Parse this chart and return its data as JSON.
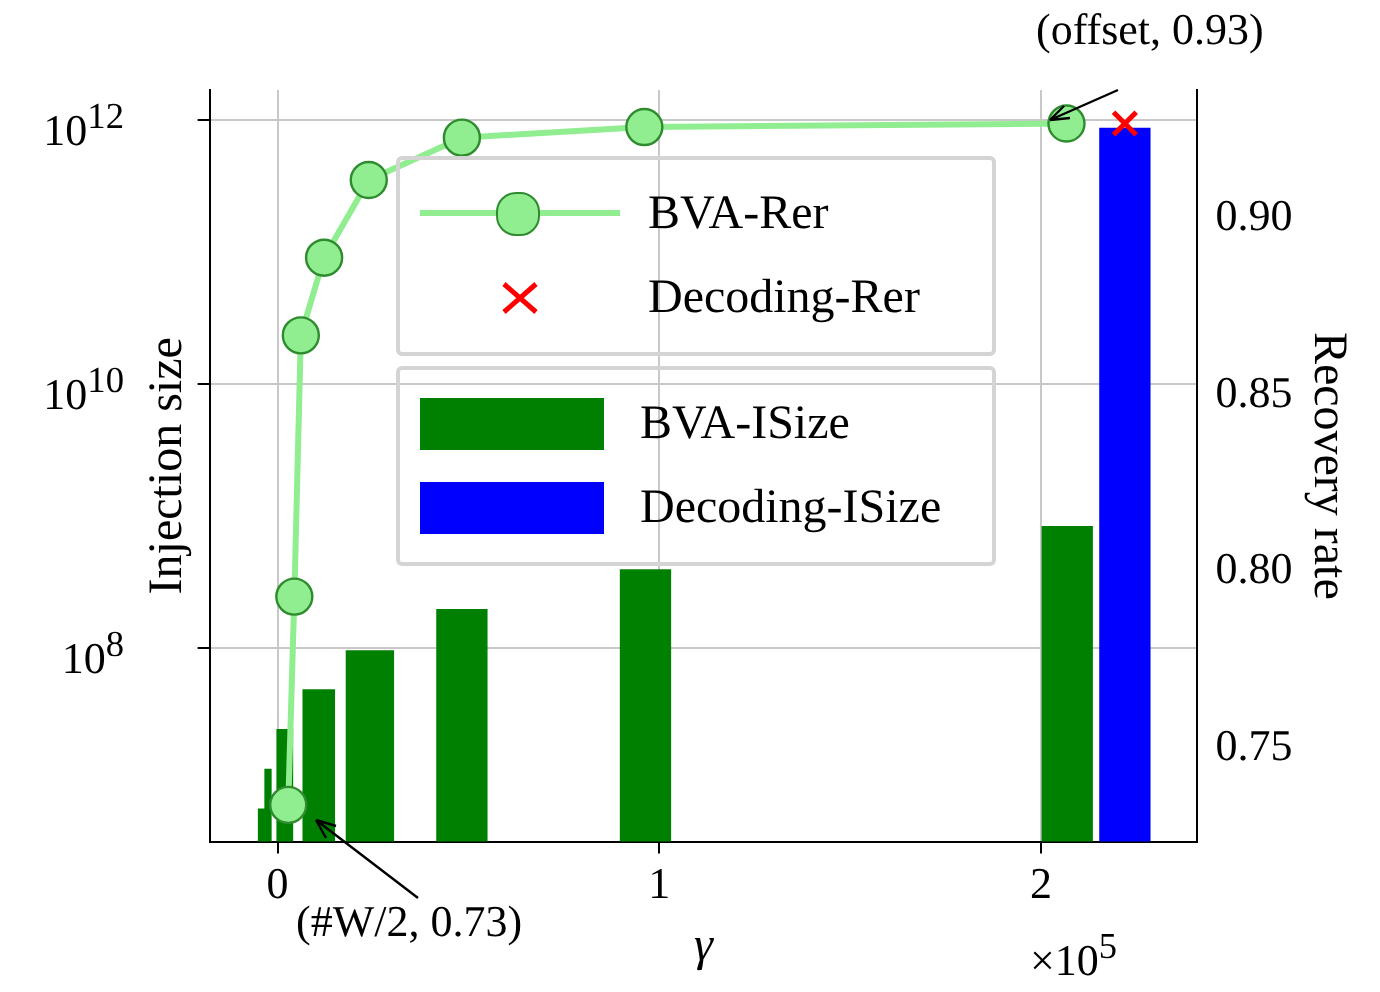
{
  "chart_data": {
    "type": "bar",
    "xlabel": "γ",
    "ylabel": "Injection size",
    "y2label": "Recovery rate",
    "x": [
      0.028,
      0.044,
      0.061,
      0.122,
      0.239,
      0.483,
      0.961,
      2.067
    ],
    "xlim": [
      -0.178,
      2.41
    ],
    "xticks": [
      0,
      1,
      2
    ],
    "ylim": [
      3400000,
      1700000000000
    ],
    "yticks": [
      {
        "value": 100000000,
        "label": "10$^{8}$"
      },
      {
        "value": 10000000000,
        "label": "10$^{10}$"
      },
      {
        "value": 1000000000000,
        "label": "10$^{12}$"
      }
    ],
    "y2lim": [
      0.7236,
      0.9365
    ],
    "y2ticks": [
      {
        "value": 0.75,
        "label": "0.75"
      },
      {
        "value": 0.8,
        "label": "0.80"
      },
      {
        "value": 0.85,
        "label": "0.85"
      },
      {
        "value": 0.9,
        "label": "0.90"
      }
    ],
    "log": "y",
    "grid": true,
    "legend": "top",
    "series": [
      {
        "name": "BVA-Rer",
        "type": "line",
        "axis": "y2",
        "color": "#90ee90",
        "marker": "circle",
        "values": [
          0.734,
          0.793,
          0.867,
          0.889,
          0.911,
          0.923,
          0.926,
          0.927
        ]
      },
      {
        "name": "Decoding-Rer",
        "type": "scatter",
        "axis": "y2",
        "color": "#ff0000",
        "marker": "cross",
        "x": [
          2.22
        ],
        "values": [
          0.927
        ]
      },
      {
        "name": "BVA-ISize",
        "color": "#008000",
        "x": [
          -0.042,
          -0.025,
          0.019,
          0.108,
          0.242,
          0.483,
          0.964,
          2.069
        ],
        "values": [
          6000000,
          12000000,
          24000000,
          48000000,
          95000000,
          195000000,
          390000000,
          830000000
        ]
      },
      {
        "name": "Decoding-ISize",
        "color": "#0000ff",
        "x": [
          2.22
        ],
        "values": [
          870000000000
        ]
      }
    ],
    "annotations": [
      "(offset, 0.93)",
      "(#W/2, 0.73)",
      "×10$^{5}$"
    ]
  }
}
